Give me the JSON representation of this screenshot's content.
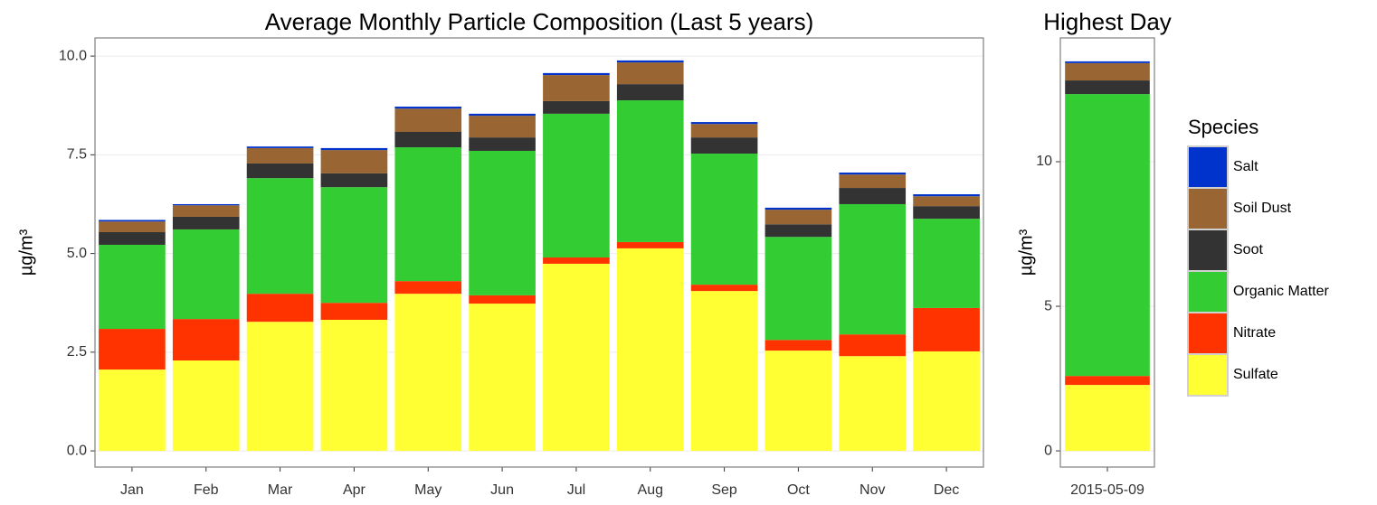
{
  "chart_data": [
    {
      "type": "stacked_bar",
      "title": "Average Monthly Particle Composition (Last 5 years)",
      "y_label": "µg/m³",
      "categories": [
        "Jan",
        "Feb",
        "Mar",
        "Apr",
        "May",
        "Jun",
        "Jul",
        "Aug",
        "Sep",
        "Oct",
        "Nov",
        "Dec"
      ],
      "series": [
        {
          "name": "Sulfate",
          "color": "#ffff33",
          "values": [
            2.06,
            2.29,
            3.27,
            3.32,
            3.98,
            3.73,
            4.74,
            5.13,
            4.05,
            2.54,
            2.4,
            2.52
          ]
        },
        {
          "name": "Nitrate",
          "color": "#ff3300",
          "values": [
            1.03,
            1.05,
            0.71,
            0.43,
            0.32,
            0.21,
            0.16,
            0.16,
            0.16,
            0.27,
            0.55,
            1.1
          ]
        },
        {
          "name": "Organic Matter",
          "color": "#33cc33",
          "values": [
            2.13,
            2.27,
            2.93,
            2.93,
            3.39,
            3.66,
            3.64,
            3.59,
            3.32,
            2.61,
            3.3,
            2.26
          ]
        },
        {
          "name": "Soot",
          "color": "#333333",
          "values": [
            0.32,
            0.32,
            0.37,
            0.35,
            0.39,
            0.34,
            0.32,
            0.41,
            0.41,
            0.32,
            0.41,
            0.32
          ]
        },
        {
          "name": "Soil Dust",
          "color": "#996633",
          "values": [
            0.27,
            0.29,
            0.39,
            0.59,
            0.59,
            0.55,
            0.66,
            0.55,
            0.34,
            0.37,
            0.34,
            0.25
          ]
        },
        {
          "name": "Salt",
          "color": "#0033cc",
          "values": [
            0.04,
            0.03,
            0.04,
            0.05,
            0.05,
            0.05,
            0.05,
            0.05,
            0.05,
            0.05,
            0.05,
            0.05
          ]
        }
      ],
      "ylim": [
        -0.41,
        10.46
      ],
      "yticks": [
        {
          "value": 0,
          "label": "0.0"
        },
        {
          "value": 2.5,
          "label": "2.5"
        },
        {
          "value": 5,
          "label": "5.0"
        },
        {
          "value": 7.5,
          "label": "7.5"
        },
        {
          "value": 10,
          "label": "10.0"
        }
      ],
      "grid": true
    },
    {
      "type": "stacked_bar",
      "title": "Highest Day",
      "y_label": "µg/m³",
      "legend_title": "Species",
      "legend": "right",
      "categories": [
        "2015-05-09"
      ],
      "series": [
        {
          "name": "Sulfate",
          "color": "#ffff33",
          "values": [
            2.28
          ]
        },
        {
          "name": "Nitrate",
          "color": "#ff3300",
          "values": [
            0.31
          ]
        },
        {
          "name": "Organic Matter",
          "color": "#33cc33",
          "values": [
            9.75
          ]
        },
        {
          "name": "Soot",
          "color": "#333333",
          "values": [
            0.47
          ]
        },
        {
          "name": "Soil Dust",
          "color": "#996633",
          "values": [
            0.6
          ]
        },
        {
          "name": "Salt",
          "color": "#0033cc",
          "values": [
            0.06
          ]
        }
      ],
      "ylim": [
        -0.56,
        14.28
      ],
      "yticks": [
        0,
        5,
        10
      ],
      "grid": true
    }
  ]
}
